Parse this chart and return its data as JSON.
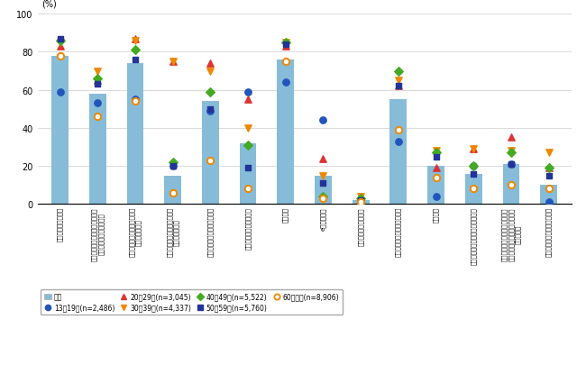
{
  "categories": [
    "電子メールの送受信",
    "ホームページやブログの閲覧、\n書き込み又は開設・更新",
    "ソーシャルネットワーキング\nサービスの利用",
    "業務目的でのオンライン会議\nシステムの利用",
    "動画投稿・共有サイトの利用",
    "オンラインゲームの利用",
    "情報検索",
    "eラーニング",
    "オンライン診療の利用",
    "商品・サービスの購入・取引",
    "金融取引",
    "デジタルコンテンツの購入・取引",
    "インターネットオークション、\nフリーマーケットアプリによる\n購入・取引",
    "電子政府・電子自治体の利用"
  ],
  "bar_values": [
    78,
    58,
    74,
    15,
    54,
    32,
    76,
    15,
    2,
    55,
    20,
    16,
    21,
    10
  ],
  "series": {
    "13-19": [
      59,
      53,
      55,
      20,
      49,
      59,
      64,
      44,
      2,
      33,
      4,
      20,
      21,
      1
    ],
    "20-29": [
      83,
      65,
      87,
      75,
      74,
      55,
      83,
      24,
      3,
      62,
      19,
      29,
      35,
      19
    ],
    "30-39": [
      85,
      70,
      86,
      75,
      70,
      40,
      85,
      15,
      4,
      65,
      28,
      29,
      28,
      27
    ],
    "40-49": [
      86,
      66,
      81,
      22,
      59,
      31,
      85,
      4,
      3,
      70,
      27,
      20,
      27,
      19
    ],
    "50-59": [
      87,
      63,
      76,
      20,
      50,
      19,
      84,
      11,
      2,
      62,
      25,
      16,
      21,
      15
    ],
    "60plus": [
      78,
      46,
      54,
      6,
      23,
      8,
      75,
      3,
      1,
      39,
      14,
      8,
      10,
      8
    ]
  },
  "bar_color": "#87bcd8",
  "series_info": [
    {
      "key": "13-19",
      "color": "#2255bb",
      "marker": "o",
      "ms": 28,
      "hollow": false
    },
    {
      "key": "20-29",
      "color": "#dd3333",
      "marker": "^",
      "ms": 28,
      "hollow": false
    },
    {
      "key": "30-39",
      "color": "#ee8800",
      "marker": "v",
      "ms": 28,
      "hollow": false
    },
    {
      "key": "40-49",
      "color": "#44aa22",
      "marker": "D",
      "ms": 24,
      "hollow": false
    },
    {
      "key": "50-59",
      "color": "#223399",
      "marker": "s",
      "ms": 24,
      "hollow": false
    },
    {
      "key": "60plus",
      "color": "#ee8800",
      "marker": "o",
      "ms": 28,
      "hollow": true
    }
  ],
  "legend_labels": {
    "bar": "全体",
    "13-19": "13～19歳(n=2,486)",
    "20-29": "20～29歳(n=3,045)",
    "30-39": "30～39歳(n=4,337)",
    "40-49": "40～49歳(n=5,522)",
    "50-59": "50～59歳(n=5,760)",
    "60plus": "60歳以上(n=8,906)"
  },
  "ylabel": "(%)",
  "ylim": [
    0,
    100
  ],
  "yticks": [
    0,
    20,
    40,
    60,
    80,
    100
  ]
}
